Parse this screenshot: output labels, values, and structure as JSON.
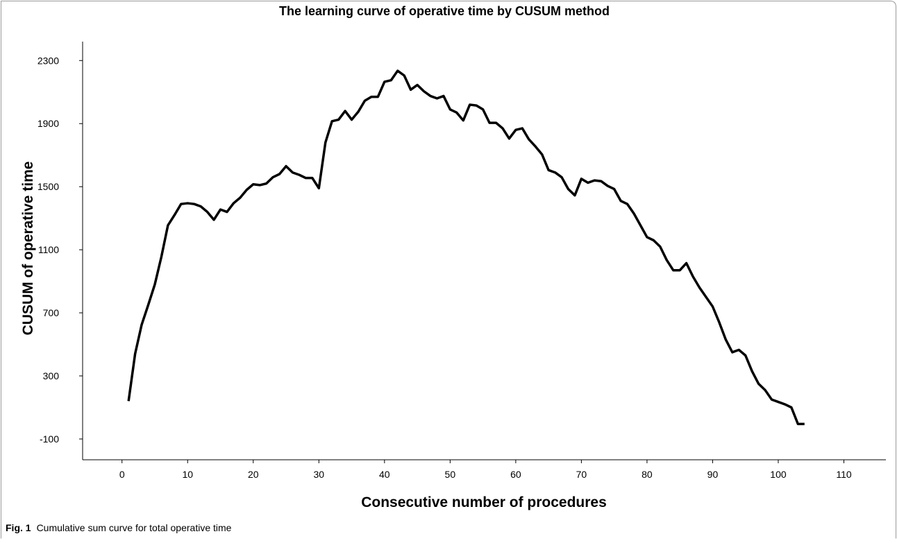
{
  "chart_data": {
    "type": "line",
    "title": "The learning curve of operative time by CUSUM method",
    "xlabel": "Consecutive number of procedures",
    "ylabel": "CUSUM of operative time",
    "color": "#000000",
    "x": [
      1,
      2,
      3,
      4,
      5,
      6,
      7,
      8,
      9,
      10,
      11,
      12,
      13,
      14,
      15,
      16,
      17,
      18,
      19,
      20,
      21,
      22,
      23,
      24,
      25,
      26,
      27,
      28,
      29,
      30,
      31,
      32,
      33,
      34,
      35,
      36,
      37,
      38,
      39,
      40,
      41,
      42,
      43,
      44,
      45,
      46,
      47,
      48,
      49,
      50,
      51,
      52,
      53,
      54,
      55,
      56,
      57,
      58,
      59,
      60,
      61,
      62,
      63,
      64,
      65,
      66,
      67,
      68,
      69,
      70,
      71,
      72,
      73,
      74,
      75,
      76,
      77,
      78,
      79,
      80,
      81,
      82,
      83,
      84,
      85,
      86,
      87,
      88,
      89,
      90,
      91,
      92,
      93,
      94,
      95,
      96,
      97,
      98,
      99,
      100,
      101,
      102,
      103,
      104
    ],
    "values": [
      140,
      440,
      625,
      750,
      880,
      1055,
      1255,
      1320,
      1390,
      1395,
      1390,
      1375,
      1340,
      1290,
      1355,
      1340,
      1395,
      1430,
      1480,
      1515,
      1510,
      1520,
      1560,
      1580,
      1630,
      1590,
      1575,
      1555,
      1555,
      1490,
      1780,
      1915,
      1925,
      1980,
      1925,
      1975,
      2045,
      2070,
      2070,
      2165,
      2175,
      2235,
      2205,
      2115,
      2145,
      2105,
      2075,
      2060,
      2075,
      1990,
      1970,
      1920,
      2020,
      2015,
      1990,
      1905,
      1905,
      1870,
      1805,
      1860,
      1870,
      1800,
      1755,
      1705,
      1605,
      1590,
      1560,
      1485,
      1445,
      1550,
      1525,
      1540,
      1535,
      1505,
      1485,
      1410,
      1390,
      1330,
      1255,
      1180,
      1160,
      1120,
      1035,
      970,
      970,
      1015,
      930,
      860,
      800,
      740,
      640,
      530,
      450,
      465,
      430,
      330,
      250,
      210,
      150,
      135,
      120,
      100,
      -5,
      -5
    ],
    "xlim": [
      -6,
      116.4
    ],
    "ylim": [
      -232,
      2420
    ],
    "xticks": [
      0,
      10,
      20,
      30,
      40,
      50,
      60,
      70,
      80,
      90,
      100,
      110
    ],
    "yticks": [
      -100,
      300,
      700,
      1100,
      1500,
      1900,
      2300
    ]
  },
  "caption": {
    "label": "Fig. 1",
    "text": "Cumulative sum curve for total operative time"
  }
}
